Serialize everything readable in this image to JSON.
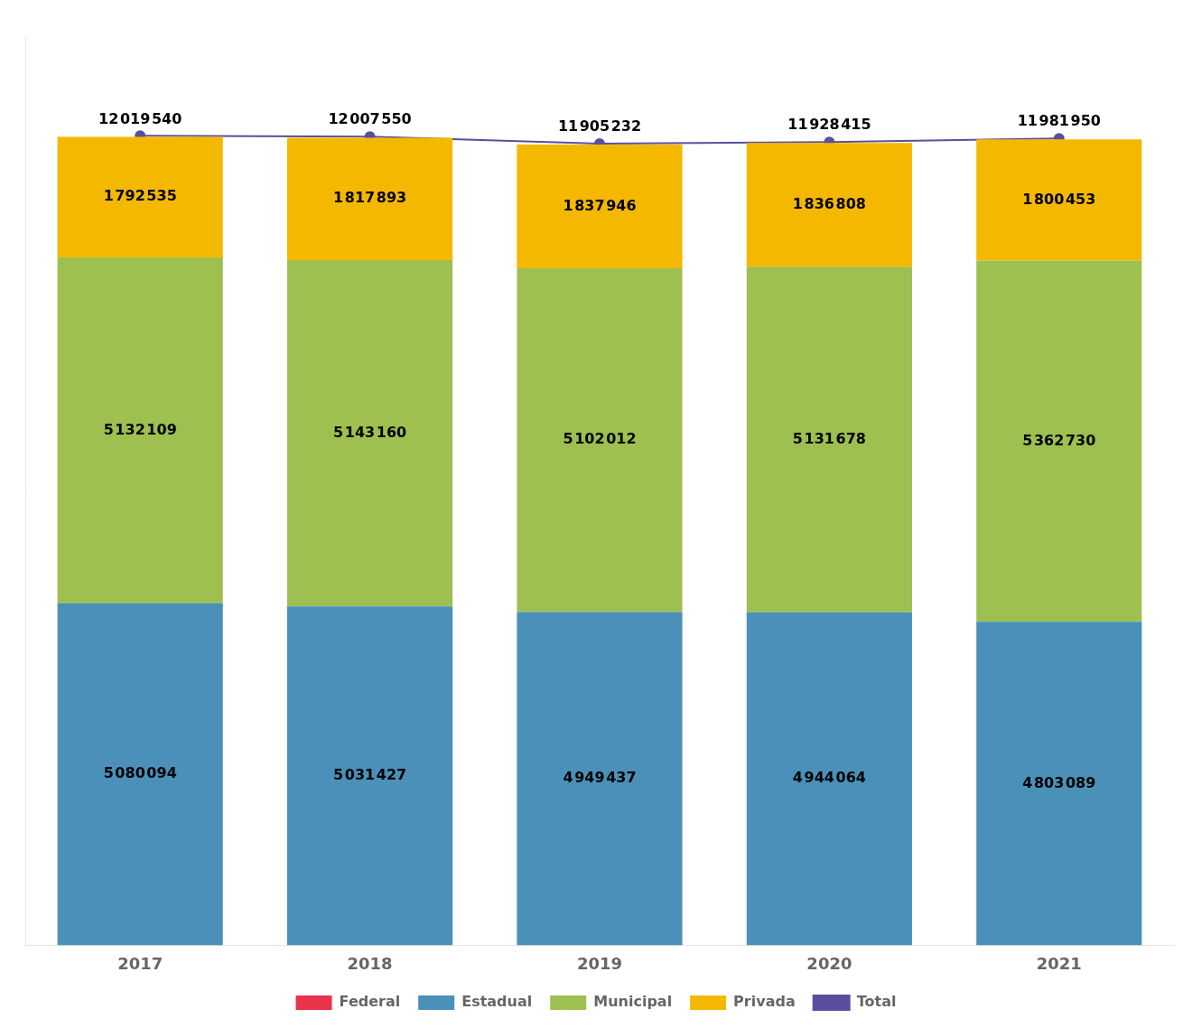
{
  "chart_data": {
    "type": "bar",
    "categories": [
      "2017",
      "2018",
      "2019",
      "2020",
      "2021"
    ],
    "stacked": true,
    "ylim": [
      0,
      13500000
    ],
    "tick_labels": "x",
    "grid": false,
    "legend": "bottom",
    "series": [
      {
        "name": "Federal",
        "color": "#e8334a",
        "values": [
          0,
          0,
          0,
          0,
          0
        ],
        "data_labels": false
      },
      {
        "name": "Estadual",
        "color": "#4a90b8",
        "values": [
          5080094,
          5031427,
          4949437,
          4944064,
          4803089
        ],
        "data_labels": true,
        "value_labels": [
          "5 080 094",
          "5 031 427",
          "4 949 437",
          "4 944 064",
          "4 803 089"
        ]
      },
      {
        "name": "Municipal",
        "color": "#9dc050",
        "values": [
          5132109,
          5143160,
          5102012,
          5131678,
          5362730
        ],
        "data_labels": true,
        "value_labels": [
          "5 132 109",
          "5 143 160",
          "5 102 012",
          "5 131 678",
          "5 362 730"
        ]
      },
      {
        "name": "Privada",
        "color": "#f5b800",
        "values": [
          1792535,
          1817893,
          1837946,
          1836808,
          1800453
        ],
        "data_labels": true,
        "value_labels": [
          "1 792 535",
          "1 817 893",
          "1 837 946",
          "1 836 808",
          "1 800 453"
        ]
      },
      {
        "name": "Total",
        "type": "line",
        "color": "#5b4ea0",
        "marker": "circle",
        "line_style": "solid",
        "values": [
          12019540,
          12007550,
          11905232,
          11928415,
          11981950
        ],
        "data_labels": true,
        "value_labels": [
          "12 019 540",
          "12 007 550",
          "11 905 232",
          "11 928 415",
          "11 981 950"
        ]
      }
    ]
  }
}
